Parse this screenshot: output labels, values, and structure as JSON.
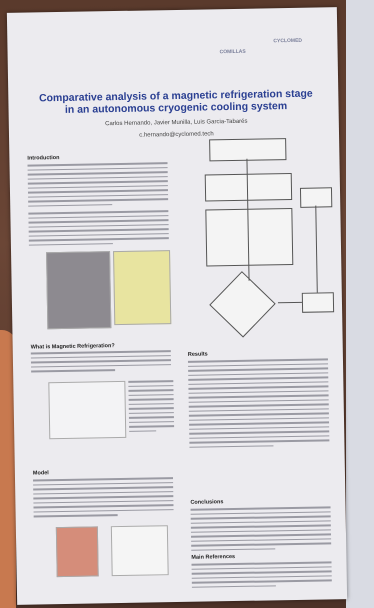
{
  "poster": {
    "logos": [
      "COMILLAS",
      "CYCLOMED"
    ],
    "title": "Comparative analysis of a magnetic refrigeration stage in an autonomous cryogenic cooling system",
    "authors": "Carlos Hernando, Javier Munilla, Luis Garcia-Tabarés",
    "email": "c.hernando@cyclomed.tech",
    "sections": [
      "Introduction",
      "What is Magnetic Refrigeration?",
      "Model",
      "Results",
      "Conclusions",
      "Main References"
    ]
  }
}
